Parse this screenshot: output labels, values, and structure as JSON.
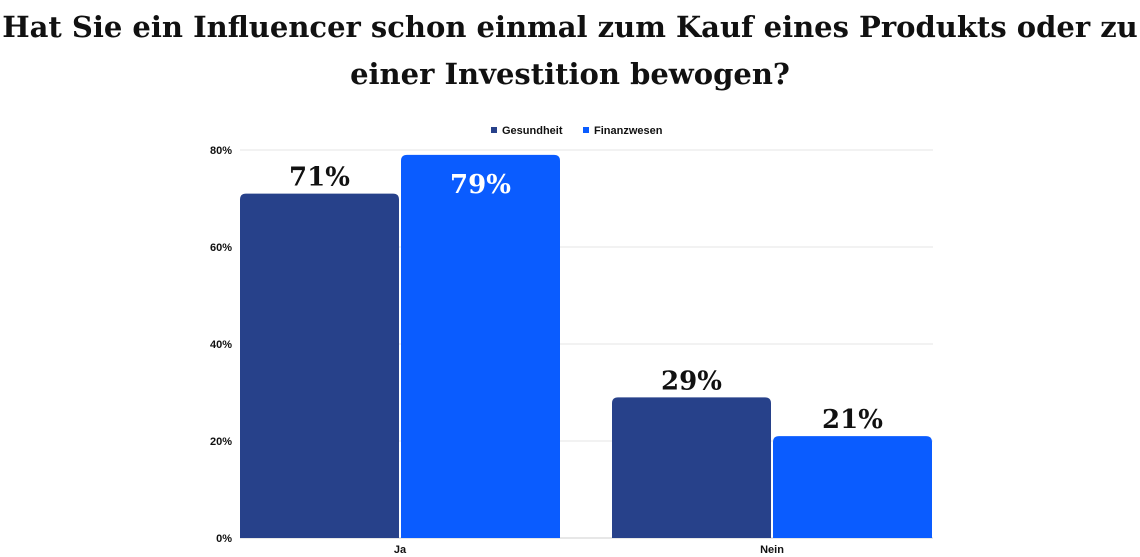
{
  "chart_data": {
    "type": "bar",
    "title": "Hat Sie ein Influencer schon einmal zum Kauf eines Produkts oder zu einer Investition bewogen?",
    "categories": [
      "Ja",
      "Nein"
    ],
    "series": [
      {
        "name": "Gesundheit",
        "color": "#27418a",
        "values": [
          71,
          29
        ],
        "labels": [
          "71%",
          "29%"
        ]
      },
      {
        "name": "Finanzwesen",
        "color": "#0a5cff",
        "values": [
          79,
          21
        ],
        "labels": [
          "79%",
          "21%"
        ]
      }
    ],
    "ylim": [
      0,
      80
    ],
    "yticks": [
      0,
      20,
      40,
      60,
      80
    ],
    "ytick_labels": [
      "0%",
      "20%",
      "40%",
      "60%",
      "80%"
    ],
    "xlabel": "",
    "ylabel": "",
    "grid": true,
    "legend": "top-center"
  }
}
